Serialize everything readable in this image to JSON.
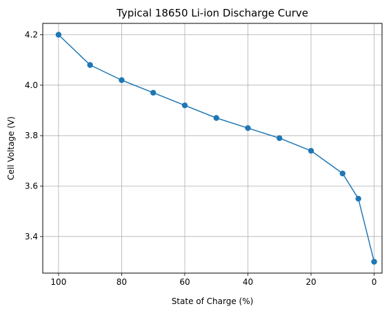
{
  "chart_data": {
    "type": "line",
    "title": "Typical 18650 Li-ion Discharge Curve",
    "xlabel": "State of Charge (%)",
    "ylabel": "Cell Voltage (V)",
    "x_inverted": true,
    "xlim": [
      105,
      -2.5
    ],
    "ylim": [
      3.255,
      4.245
    ],
    "grid": true,
    "xticks": [
      100,
      80,
      60,
      40,
      20,
      0
    ],
    "yticks": [
      3.4,
      3.6,
      3.8,
      4.0,
      4.2
    ],
    "ytick_labels": [
      "3.4",
      "3.6",
      "3.8",
      "4.0",
      "4.2"
    ],
    "series": [
      {
        "color": "#1f77b4",
        "marker": "circle",
        "x": [
          100,
          90,
          80,
          70,
          60,
          50,
          40,
          30,
          20,
          10,
          5,
          0
        ],
        "y": [
          4.2,
          4.08,
          4.02,
          3.97,
          3.92,
          3.87,
          3.83,
          3.79,
          3.74,
          3.65,
          3.55,
          3.3
        ]
      }
    ]
  }
}
